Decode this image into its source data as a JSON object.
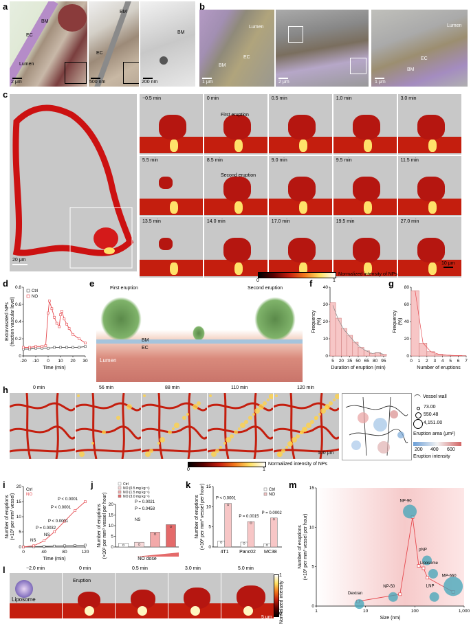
{
  "panel_letters": {
    "a": "a",
    "b": "b",
    "c": "c",
    "d": "d",
    "e": "e",
    "f": "f",
    "g": "g",
    "h": "h",
    "i": "i",
    "j": "j",
    "k": "k",
    "l": "l",
    "m": "m"
  },
  "panel_a": {
    "labels": [
      "BM",
      "EC",
      "Lumen",
      "BM",
      "EC",
      "BM"
    ],
    "scales": [
      "2 μm",
      "500 nm",
      "200 nm"
    ]
  },
  "panel_b": {
    "labels": [
      "Lumen",
      "EC",
      "BM",
      "Lumen",
      "EC",
      "BM"
    ],
    "scales": [
      "1 μm",
      "2 μm",
      "1 μm"
    ]
  },
  "panel_c": {
    "times": [
      "−0.5 min",
      "0 min",
      "0.5 min",
      "1.0 min",
      "3.0 min",
      "5.5 min",
      "8.5 min",
      "9.0 min",
      "9.5 min",
      "11.5 min",
      "13.5 min",
      "14.0 min",
      "17.0 min",
      "19.5 min",
      "27.0 min"
    ],
    "annotations": [
      "First eruption",
      "Second eruption"
    ],
    "scales": [
      "20 μm",
      "10 μm"
    ],
    "colorbar": {
      "label": "Normalized intensity of NPs",
      "min": "0",
      "max": "1"
    }
  },
  "panel_e": {
    "labels": [
      "First eruption",
      "Second eruption",
      "BM",
      "EC",
      "Lumen"
    ]
  },
  "panel_h": {
    "times": [
      "0 min",
      "56 min",
      "88 min",
      "110 min",
      "120 min"
    ],
    "scale": "100 μm",
    "legend": {
      "wall": "Vessel wall",
      "sizes": [
        "73.00",
        "550.48",
        "4,151.00"
      ],
      "area_label": "Eruption area (μm²)",
      "intensity_ticks": [
        "200",
        "400",
        "600"
      ],
      "intensity_label": "Eruption intensity"
    },
    "colorbar": {
      "label": "Normalized intensity of NPs",
      "min": "0",
      "max": "1"
    }
  },
  "panel_l": {
    "times": [
      "−2.0 min",
      "0 min",
      "0.5 min",
      "3.0 min",
      "5.0 min"
    ],
    "labels": [
      "Liposome",
      "Eruption"
    ],
    "scale": "5 μm",
    "colorbar": {
      "label": "Normalized intensity",
      "min": "0",
      "max": "1"
    }
  },
  "colors": {
    "ctrl": "#555555",
    "no": "#e5484d",
    "no_fill": "#f5b8b8",
    "bar_fill": "#f7c6c6"
  },
  "chart_data": [
    {
      "panel": "d",
      "type": "line",
      "ylabel": "Extravasated NPs (fraction vascular level)",
      "xlabel": "Time (min)",
      "xlim": [
        -20,
        30
      ],
      "ylim": [
        0,
        0.8
      ],
      "xticks": [
        "-20",
        "-10",
        "0",
        "10",
        "20",
        "30"
      ],
      "yticks": [
        "0",
        "0.2",
        "0.4",
        "0.6",
        "0.8"
      ],
      "series": [
        {
          "name": "Ctrl",
          "x": [
            -20,
            -15,
            -10,
            -5,
            0,
            5,
            10,
            15,
            20,
            25,
            30
          ],
          "y": [
            0.08,
            0.08,
            0.09,
            0.09,
            0.09,
            0.1,
            0.1,
            0.1,
            0.1,
            0.1,
            0.11
          ]
        },
        {
          "name": "NO",
          "x": [
            -20,
            -15,
            -10,
            -5,
            -2,
            0,
            1,
            3,
            5,
            7,
            9,
            10,
            11,
            13,
            15,
            17,
            20,
            25,
            30
          ],
          "y": [
            0.1,
            0.1,
            0.11,
            0.11,
            0.12,
            0.5,
            0.64,
            0.55,
            0.45,
            0.38,
            0.34,
            0.48,
            0.52,
            0.43,
            0.37,
            0.32,
            0.25,
            0.2,
            0.15
          ]
        }
      ]
    },
    {
      "panel": "f",
      "type": "bar",
      "ylabel": "Frequency (%)",
      "xlabel": "Duration of eruption (min)",
      "ylim": [
        0,
        40
      ],
      "categories": [
        "5",
        "15",
        "25",
        "35",
        "45",
        "55",
        "65",
        "75",
        "85",
        "95"
      ],
      "xticks": [
        "5",
        "20",
        "35",
        "50",
        "65",
        "80",
        "95"
      ],
      "yticks": [
        "0",
        "10",
        "20",
        "30",
        "40"
      ],
      "values": [
        31,
        22,
        16,
        12,
        8,
        5,
        3,
        1.5,
        2,
        1
      ]
    },
    {
      "panel": "g",
      "type": "bar",
      "ylabel": "Frequency (%)",
      "xlabel": "Number of eruptions",
      "ylim": [
        0,
        80
      ],
      "categories": [
        "1",
        "2",
        "3",
        "4",
        "5",
        "6",
        "7"
      ],
      "xticks": [
        "0",
        "1",
        "2",
        "3",
        "4",
        "5",
        "6",
        "7"
      ],
      "yticks": [
        "0",
        "20",
        "40",
        "60",
        "80"
      ],
      "values": [
        76,
        15,
        5,
        2,
        1,
        0.5,
        0.5
      ]
    },
    {
      "panel": "i",
      "type": "line",
      "ylabel": "Number of eruptions (×10² per mm³ vessel)",
      "xlabel": "Time (min)",
      "xlim": [
        0,
        120
      ],
      "ylim": [
        0,
        20
      ],
      "xticks": [
        "0",
        "40",
        "80",
        "120"
      ],
      "yticks": [
        "0",
        "5",
        "10",
        "15",
        "20"
      ],
      "series": [
        {
          "name": "Ctrl",
          "x": [
            0,
            20,
            40,
            60,
            80,
            100,
            120
          ],
          "y": [
            0,
            0.1,
            0.2,
            0.3,
            0.4,
            0.5,
            0.6
          ]
        },
        {
          "name": "NO",
          "x": [
            0,
            20,
            40,
            60,
            80,
            100,
            120
          ],
          "y": [
            0,
            0.4,
            2,
            5,
            8.5,
            12,
            15
          ]
        }
      ],
      "annotations": [
        "P < 0.0001",
        "P < 0.0001",
        "P < 0.0001",
        "P = 0.0032",
        "NS",
        "NS"
      ]
    },
    {
      "panel": "j",
      "type": "bar",
      "ylabel": "Number of eruptions (×10² per mm³ vessel per hour)",
      "xlabel": "NO dose",
      "ylim": [
        0,
        20
      ],
      "categories": [
        "Ctrl",
        "NO (0.5 mg kg⁻¹)",
        "NO (1.5 mg kg⁻¹)",
        "NO (3.0 mg kg⁻¹)"
      ],
      "yticks": [
        "0",
        "5",
        "10",
        "15",
        "20"
      ],
      "values": [
        1.8,
        2.2,
        7,
        10.5
      ],
      "annotations": [
        "NS",
        "P = 0.0458",
        "P = 0.0021"
      ]
    },
    {
      "panel": "k",
      "type": "bar",
      "ylabel": "Number of eruptions (×10² per mm³ vessel per hour)",
      "ylim": [
        0,
        15
      ],
      "categories": [
        "4T1",
        "Panc02",
        "MC38"
      ],
      "yticks": [
        "0",
        "5",
        "10",
        "15"
      ],
      "series": [
        {
          "name": "Ctrl",
          "values": [
            1.5,
            1.2,
            0.8
          ]
        },
        {
          "name": "NO",
          "values": [
            10.8,
            6.3,
            7.2
          ]
        }
      ],
      "annotations": [
        "P < 0.0001",
        "P = 0.0015",
        "P = 0.0002"
      ]
    },
    {
      "panel": "m",
      "type": "line",
      "ylabel": "Number of eruptions (×10² per mm³ vessel per hour)",
      "xlabel": "Size (nm)",
      "xscale": "log",
      "xlim": [
        1,
        1000
      ],
      "ylim": [
        0,
        15
      ],
      "xticks": [
        "1",
        "10",
        "100",
        "1,000"
      ],
      "yticks": [
        "0",
        "5",
        "10",
        "15"
      ],
      "x": [
        7,
        50,
        90,
        120,
        150,
        180,
        600
      ],
      "y": [
        0.6,
        1.5,
        11.3,
        5.1,
        4.8,
        3.6,
        1.8
      ],
      "labels": [
        "Dextran",
        "NP-50",
        "NP-90",
        "pNP",
        "Liposome",
        "LNP",
        "MP-660"
      ]
    }
  ]
}
